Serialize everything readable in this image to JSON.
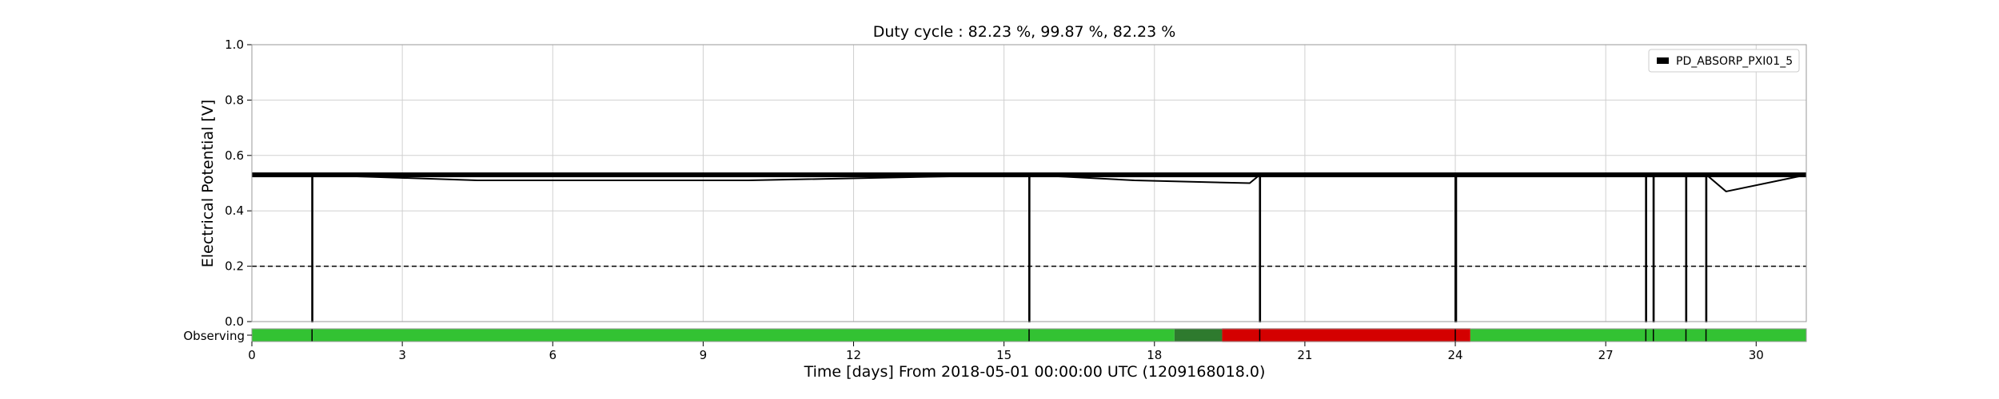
{
  "chart_data": {
    "type": "line",
    "title": "Duty cycle : 82.23 %, 99.87 %, 82.23 %",
    "xlabel": "Time [days] From 2018-05-01 00:00:00 UTC (1209168018.0)",
    "ylabel": "Electrical Potential [V]",
    "xlim": [
      0,
      31
    ],
    "ylim": [
      0,
      1.0
    ],
    "xticks": [
      0,
      3,
      6,
      9,
      12,
      15,
      18,
      21,
      24,
      27,
      30
    ],
    "xtick_labels": [
      "0",
      "3",
      "6",
      "9",
      "12",
      "15",
      "18",
      "21",
      "24",
      "27",
      "30"
    ],
    "yticks": [
      0,
      0.2,
      0.4,
      0.6,
      0.8,
      1.0
    ],
    "ytick_labels": [
      "0.0",
      "0.2",
      "0.4",
      "0.6",
      "0.8",
      "1.0"
    ],
    "grid": true,
    "legend": {
      "entries": [
        "PD_ABSORP_PXI01_5"
      ],
      "placement": "top-right"
    },
    "threshold": {
      "value": 0.2,
      "style": "dashed"
    },
    "series": [
      {
        "name": "PD_ABSORP_PXI01_5",
        "color": "#000000",
        "baseline": 0.53,
        "x": [
          0,
          1.2,
          1.2,
          1.21,
          1.21,
          4.5,
          9.9,
          15.5,
          15.5,
          15.51,
          15.51,
          17.6,
          19.9,
          20.1,
          20.1,
          20.11,
          20.11,
          24.0,
          24.0,
          24.02,
          24.02,
          27.8,
          27.8,
          27.81,
          27.81,
          27.95,
          27.95,
          27.96,
          27.96,
          28.6,
          28.6,
          28.61,
          28.61,
          29.0,
          29.0,
          29.01,
          29.01,
          29.4,
          31
        ],
        "y": [
          0.53,
          0.53,
          0.0,
          0.0,
          0.53,
          0.51,
          0.51,
          0.53,
          0.0,
          0.0,
          0.53,
          0.51,
          0.5,
          0.53,
          0.0,
          0.0,
          0.53,
          0.53,
          0.0,
          0.0,
          0.53,
          0.53,
          0.0,
          0.0,
          0.53,
          0.53,
          0.0,
          0.0,
          0.53,
          0.53,
          0.0,
          0.0,
          0.53,
          0.53,
          0.0,
          0.0,
          0.53,
          0.47,
          0.53
        ]
      }
    ],
    "state_bar": {
      "label": "Observing",
      "colors": {
        "active": "#33c233",
        "known": "#d40000",
        "flagged": "#2e7a2e",
        "gap": "#000000"
      },
      "segments": [
        {
          "start": 0,
          "end": 18.4,
          "state": "active"
        },
        {
          "start": 18.4,
          "end": 19.35,
          "state": "flagged"
        },
        {
          "start": 19.35,
          "end": 24.3,
          "state": "known"
        },
        {
          "start": 24.3,
          "end": 31,
          "state": "active"
        }
      ],
      "gaps": [
        1.2,
        15.5,
        20.1,
        24.0,
        27.8,
        27.95,
        28.6,
        29.0
      ]
    }
  }
}
